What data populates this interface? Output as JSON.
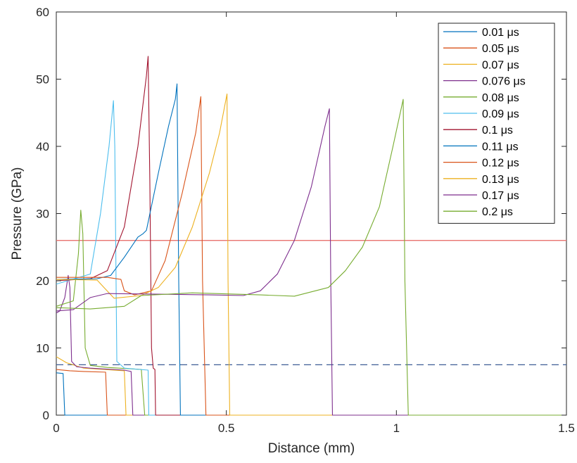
{
  "chart_data": {
    "type": "line",
    "xlabel": "Distance (mm)",
    "ylabel": "Pressure (GPa)",
    "xlim": [
      0,
      1.5
    ],
    "ylim": [
      0,
      60
    ],
    "xticks": [
      "0",
      "0.5",
      "1",
      "1.5"
    ],
    "yticks": [
      "0",
      "10",
      "20",
      "30",
      "40",
      "50",
      "60"
    ],
    "grid": false,
    "legend_position": "top-right",
    "series": [
      {
        "name": "0.01  μs",
        "color": "#0072BD",
        "points": [
          [
            0,
            6.3
          ],
          [
            0.02,
            6.2
          ],
          [
            0.025,
            0
          ],
          [
            1.5,
            0
          ]
        ]
      },
      {
        "name": "0.05  μs",
        "color": "#D95319",
        "points": [
          [
            0,
            6.8
          ],
          [
            0.04,
            6.6
          ],
          [
            0.08,
            6.5
          ],
          [
            0.145,
            6.4
          ],
          [
            0.15,
            0
          ],
          [
            1.5,
            0
          ]
        ]
      },
      {
        "name": "0.07  μs",
        "color": "#EDB120",
        "points": [
          [
            0,
            8.7
          ],
          [
            0.03,
            7.8
          ],
          [
            0.08,
            7.0
          ],
          [
            0.2,
            6.6
          ],
          [
            0.205,
            0
          ],
          [
            1.5,
            0
          ]
        ]
      },
      {
        "name": "0.076  μs",
        "color": "#7E2F8E",
        "points": [
          [
            0,
            15.2
          ],
          [
            0.01,
            15.5
          ],
          [
            0.025,
            17.5
          ],
          [
            0.035,
            20.8
          ],
          [
            0.04,
            19
          ],
          [
            0.045,
            8
          ],
          [
            0.06,
            7.2
          ],
          [
            0.1,
            7.0
          ],
          [
            0.2,
            6.7
          ],
          [
            0.22,
            6.5
          ],
          [
            0.225,
            0
          ],
          [
            1.5,
            0
          ]
        ]
      },
      {
        "name": "0.08  μs",
        "color": "#77AC30",
        "points": [
          [
            0,
            16.2
          ],
          [
            0.05,
            17
          ],
          [
            0.065,
            24
          ],
          [
            0.072,
            30.5
          ],
          [
            0.078,
            27
          ],
          [
            0.085,
            10
          ],
          [
            0.1,
            7.4
          ],
          [
            0.15,
            7.1
          ],
          [
            0.25,
            6.8
          ],
          [
            0.26,
            0
          ],
          [
            1.5,
            0
          ]
        ]
      },
      {
        "name": "0.09  μs",
        "color": "#4DBEEE",
        "points": [
          [
            0,
            19.5
          ],
          [
            0.1,
            21
          ],
          [
            0.13,
            30
          ],
          [
            0.155,
            40
          ],
          [
            0.168,
            46.8
          ],
          [
            0.172,
            40
          ],
          [
            0.178,
            8
          ],
          [
            0.2,
            7.0
          ],
          [
            0.27,
            6.7
          ],
          [
            0.272,
            0
          ],
          [
            1.5,
            0
          ]
        ]
      },
      {
        "name": "0.1  μs",
        "color": "#A2142F",
        "points": [
          [
            0,
            20
          ],
          [
            0.1,
            20.3
          ],
          [
            0.15,
            21.5
          ],
          [
            0.2,
            28
          ],
          [
            0.24,
            40
          ],
          [
            0.265,
            50.5
          ],
          [
            0.27,
            53.4
          ],
          [
            0.275,
            35
          ],
          [
            0.28,
            10
          ],
          [
            0.285,
            7.0
          ],
          [
            0.29,
            6.8
          ],
          [
            0.292,
            0
          ],
          [
            1.5,
            0
          ]
        ]
      },
      {
        "name": "0.11  μs",
        "color": "#0072BD",
        "points": [
          [
            0,
            20.2
          ],
          [
            0.12,
            20.3
          ],
          [
            0.16,
            20.8
          ],
          [
            0.2,
            23.5
          ],
          [
            0.24,
            26.5
          ],
          [
            0.255,
            27
          ],
          [
            0.265,
            27.5
          ],
          [
            0.3,
            36
          ],
          [
            0.33,
            43
          ],
          [
            0.35,
            47
          ],
          [
            0.355,
            49.3
          ],
          [
            0.36,
            20
          ],
          [
            0.365,
            0
          ],
          [
            1.5,
            0
          ]
        ]
      },
      {
        "name": "0.12  μs",
        "color": "#D95319",
        "points": [
          [
            0,
            20.5
          ],
          [
            0.15,
            20.5
          ],
          [
            0.19,
            20.2
          ],
          [
            0.2,
            18.5
          ],
          [
            0.23,
            17.9
          ],
          [
            0.28,
            18.5
          ],
          [
            0.32,
            23
          ],
          [
            0.37,
            33
          ],
          [
            0.41,
            42
          ],
          [
            0.425,
            47.4
          ],
          [
            0.43,
            20
          ],
          [
            0.44,
            0
          ],
          [
            1.5,
            0
          ]
        ]
      },
      {
        "name": "0.13  μs",
        "color": "#EDB120",
        "points": [
          [
            0,
            20.2
          ],
          [
            0.12,
            20.1
          ],
          [
            0.14,
            19
          ],
          [
            0.17,
            17.4
          ],
          [
            0.25,
            17.8
          ],
          [
            0.3,
            19
          ],
          [
            0.35,
            22
          ],
          [
            0.4,
            28
          ],
          [
            0.45,
            36
          ],
          [
            0.48,
            42
          ],
          [
            0.502,
            47.8
          ],
          [
            0.505,
            20
          ],
          [
            0.51,
            0
          ],
          [
            1.5,
            0
          ]
        ]
      },
      {
        "name": "0.17  μs",
        "color": "#7E2F8E",
        "points": [
          [
            0,
            15.5
          ],
          [
            0.05,
            15.7
          ],
          [
            0.1,
            17.5
          ],
          [
            0.15,
            18.1
          ],
          [
            0.3,
            18
          ],
          [
            0.45,
            17.9
          ],
          [
            0.55,
            17.8
          ],
          [
            0.6,
            18.5
          ],
          [
            0.65,
            21
          ],
          [
            0.7,
            26
          ],
          [
            0.75,
            34
          ],
          [
            0.79,
            43
          ],
          [
            0.803,
            45.6
          ],
          [
            0.807,
            20
          ],
          [
            0.812,
            0
          ],
          [
            1.5,
            0
          ]
        ]
      },
      {
        "name": "0.2  μs",
        "color": "#77AC30",
        "points": [
          [
            0,
            16
          ],
          [
            0.1,
            15.8
          ],
          [
            0.2,
            16.2
          ],
          [
            0.25,
            17.8
          ],
          [
            0.4,
            18.2
          ],
          [
            0.6,
            17.9
          ],
          [
            0.7,
            17.7
          ],
          [
            0.8,
            19
          ],
          [
            0.85,
            21.5
          ],
          [
            0.9,
            25
          ],
          [
            0.95,
            31
          ],
          [
            0.99,
            40
          ],
          [
            1.02,
            47
          ],
          [
            1.025,
            20
          ],
          [
            1.035,
            0
          ],
          [
            1.5,
            0
          ]
        ]
      }
    ],
    "reference_lines": [
      {
        "y": 26,
        "style": "solid",
        "color": "#E8736F"
      },
      {
        "y": 7.5,
        "style": "dashed",
        "color": "#3F5E96"
      }
    ]
  }
}
